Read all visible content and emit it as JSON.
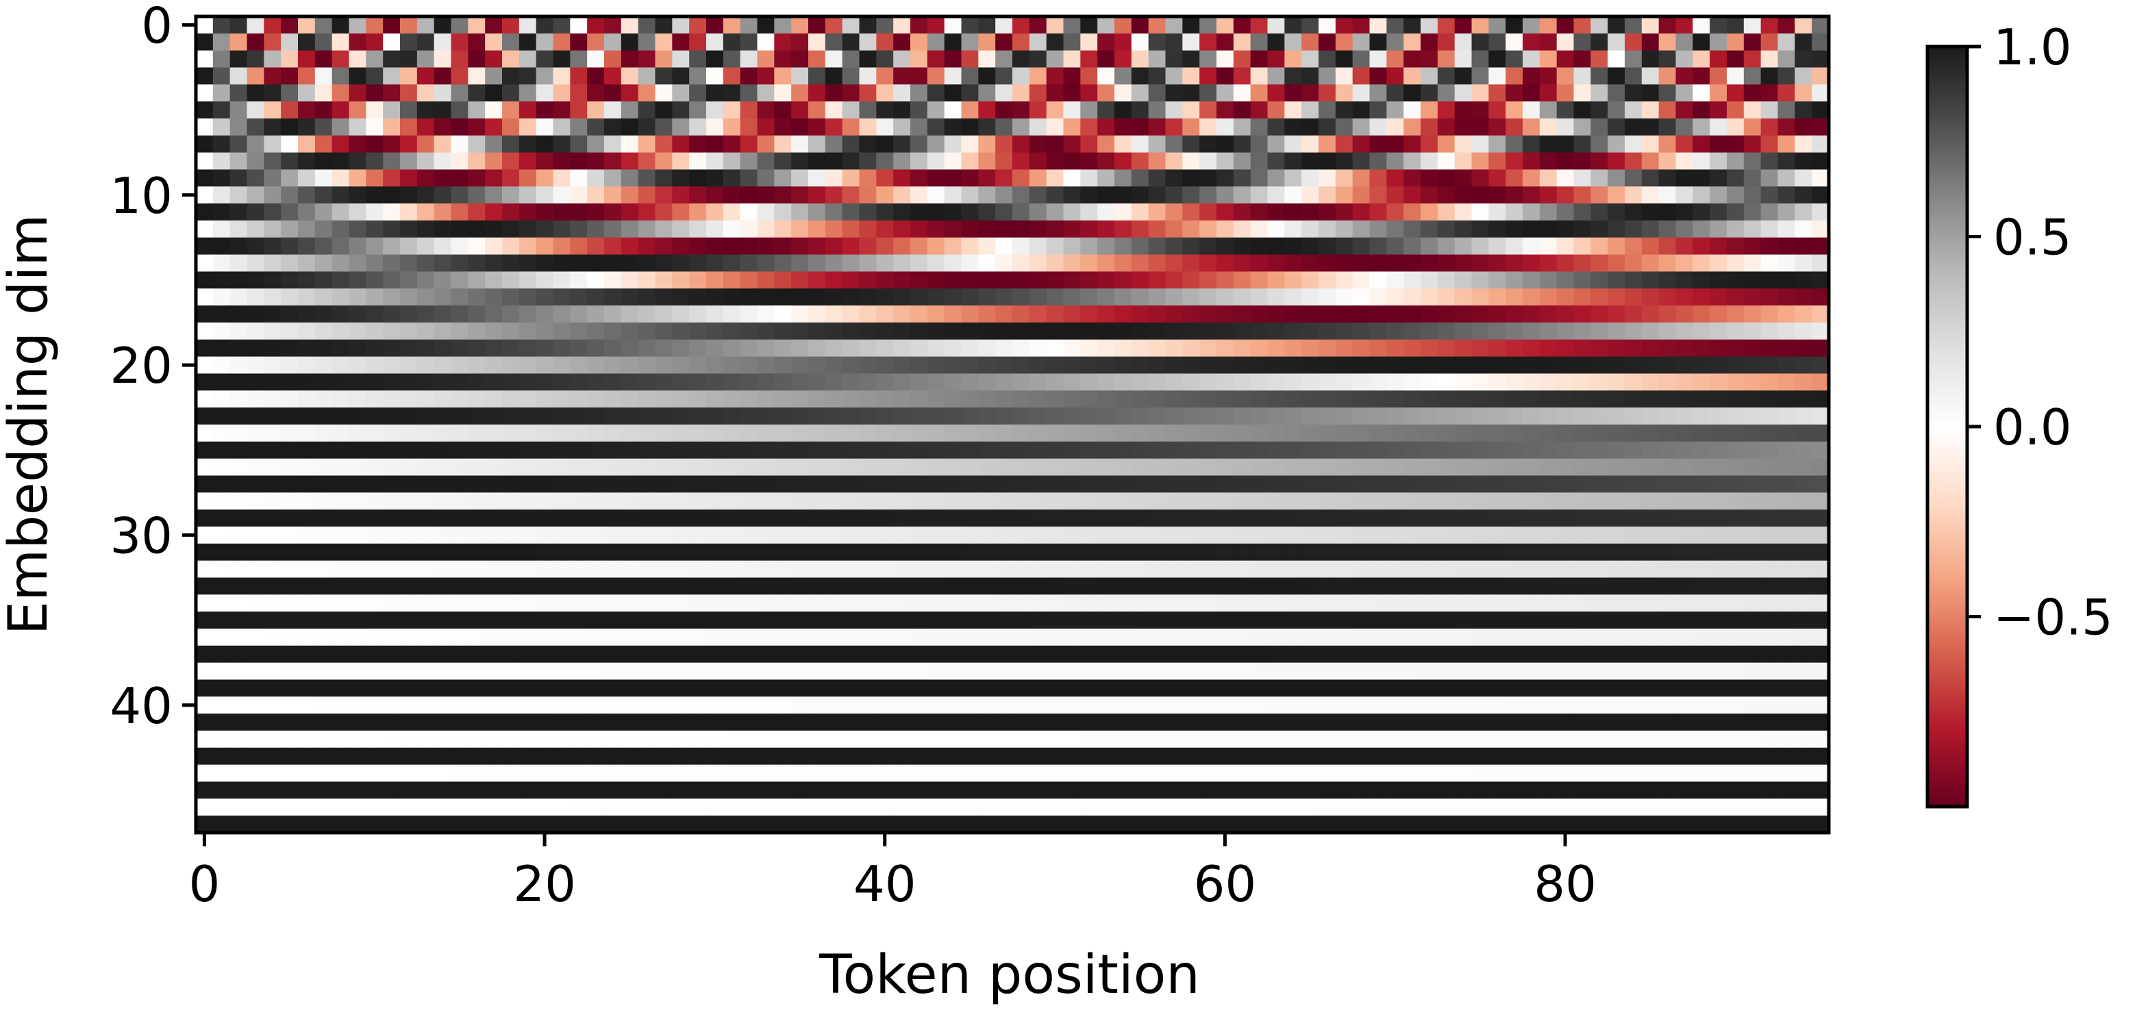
{
  "chart_data": {
    "type": "heatmap",
    "title": "",
    "xlabel": "Token position",
    "ylabel": "Embedding dim",
    "x_range": [
      0,
      95
    ],
    "y_range": [
      0,
      47
    ],
    "n_positions": 96,
    "n_dims": 48,
    "y_inverted": true,
    "encoding": "sinusoidal positional encoding",
    "x_ticks": [
      0,
      20,
      40,
      60,
      80
    ],
    "x_tick_labels": [
      "0",
      "20",
      "40",
      "60",
      "80"
    ],
    "y_ticks": [
      0,
      10,
      20,
      30,
      40
    ],
    "y_tick_labels": [
      "0",
      "10",
      "20",
      "30",
      "40"
    ],
    "colorbar": {
      "vmin": -1.0,
      "vmax": 1.0,
      "ticks": [
        1.0,
        0.5,
        0.0,
        -0.5
      ],
      "tick_labels": [
        "1.0",
        "0.5",
        "0.0",
        "−0.5"
      ],
      "colormap": [
        "#67001f",
        "#b2182b",
        "#d6604d",
        "#f4a582",
        "#fddbc7",
        "#ffffff",
        "#e0e0e0",
        "#bababa",
        "#878787",
        "#4d4d4d",
        "#1a1a1a"
      ]
    },
    "grid": false,
    "legend": "colorbar-right"
  }
}
